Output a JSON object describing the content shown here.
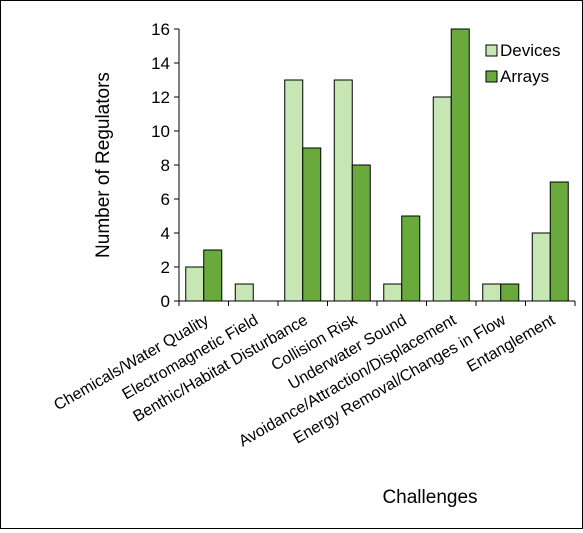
{
  "chart_data": {
    "type": "bar",
    "xlabel": "Challenges",
    "ylabel": "Number of Regulators",
    "ylim": [
      0,
      16
    ],
    "yticks": [
      0,
      2,
      4,
      6,
      8,
      10,
      12,
      14,
      16
    ],
    "grid": false,
    "legend_position": "top-right",
    "categories": [
      "Chemicals/Water Quality",
      "Electromagnetic Field",
      "Benthic/Habitat Disturbance",
      "Collision Risk",
      "Underwater Sound",
      "Avoidance/Attraction/Displacement",
      "Energy Removal/Changes in Flow",
      "Entanglement"
    ],
    "series": [
      {
        "name": "Devices",
        "color": "#c6e6b4",
        "values": [
          2,
          1,
          13,
          13,
          1,
          12,
          1,
          4
        ]
      },
      {
        "name": "Arrays",
        "color": "#6aaa3c",
        "values": [
          3,
          0,
          9,
          8,
          5,
          16,
          1,
          7
        ]
      }
    ]
  }
}
